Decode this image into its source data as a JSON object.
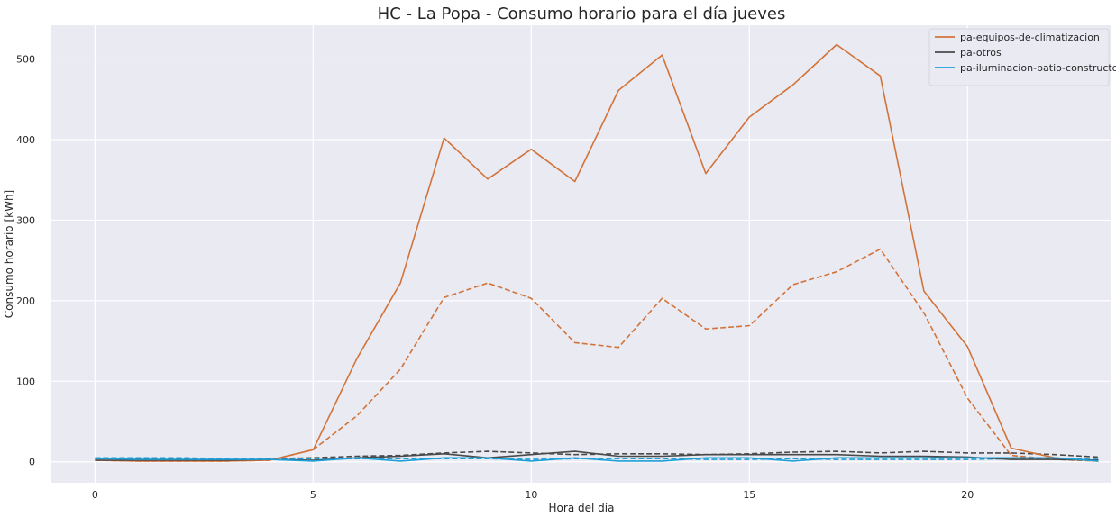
{
  "chart_data": {
    "type": "line",
    "title": "HC - La Popa - Consumo horario para el día jueves",
    "xlabel": "Hora del día",
    "ylabel": "Consumo horario [kWh]",
    "xlim": [
      -1,
      23.3
    ],
    "ylim": [
      -26,
      542
    ],
    "xticks": [
      0,
      5,
      10,
      15,
      20
    ],
    "yticks": [
      0,
      100,
      200,
      300,
      400,
      500
    ],
    "grid": true,
    "legend_position": "top-right",
    "x": [
      0,
      1,
      2,
      3,
      4,
      5,
      6,
      7,
      8,
      9,
      10,
      11,
      12,
      13,
      14,
      15,
      16,
      17,
      18,
      19,
      20,
      21,
      22,
      23
    ],
    "series": [
      {
        "name": "pa-equipos-de-climatizacion",
        "style": "solid",
        "color": "#d2733a",
        "in_legend": true,
        "values": [
          2,
          1,
          1,
          1,
          2,
          15,
          128,
          222,
          402,
          351,
          388,
          348,
          461,
          505,
          358,
          428,
          468,
          518,
          479,
          212,
          143,
          17,
          5,
          1
        ]
      },
      {
        "name": "pa-otros",
        "style": "solid",
        "color": "#4a4a4a",
        "in_legend": true,
        "values": [
          2,
          2,
          2,
          2,
          3,
          2,
          5,
          7,
          10,
          5,
          9,
          13,
          7,
          7,
          9,
          9,
          9,
          9,
          7,
          7,
          6,
          3,
          3,
          2
        ]
      },
      {
        "name": "pa-iluminacion-patio-constructor",
        "style": "solid",
        "color": "#1f9fd8",
        "in_legend": true,
        "values": [
          4,
          3,
          3,
          3,
          3,
          1,
          5,
          1,
          5,
          5,
          1,
          5,
          1,
          1,
          5,
          5,
          1,
          5,
          5,
          5,
          5,
          5,
          5,
          1
        ]
      },
      {
        "style": "dashed",
        "color": "#d2733a",
        "in_legend": false,
        "values": [
          2,
          1,
          1,
          1,
          2,
          15,
          57,
          115,
          204,
          222,
          203,
          148,
          142,
          203,
          165,
          169,
          220,
          236,
          264,
          185,
          79,
          8,
          3,
          1
        ]
      },
      {
        "style": "dashed",
        "color": "#4a4a4a",
        "in_legend": false,
        "values": [
          4,
          4,
          4,
          4,
          4,
          5,
          7,
          8,
          11,
          13,
          11,
          9,
          10,
          10,
          9,
          10,
          12,
          13,
          11,
          13,
          11,
          11,
          9,
          6
        ]
      },
      {
        "style": "dashed",
        "color": "#1f9fd8",
        "in_legend": false,
        "values": [
          5,
          5,
          5,
          4,
          4,
          4,
          4,
          4,
          4,
          4,
          3,
          4,
          4,
          4,
          3,
          3,
          4,
          3,
          3,
          3,
          3,
          4,
          4,
          3
        ]
      }
    ]
  }
}
